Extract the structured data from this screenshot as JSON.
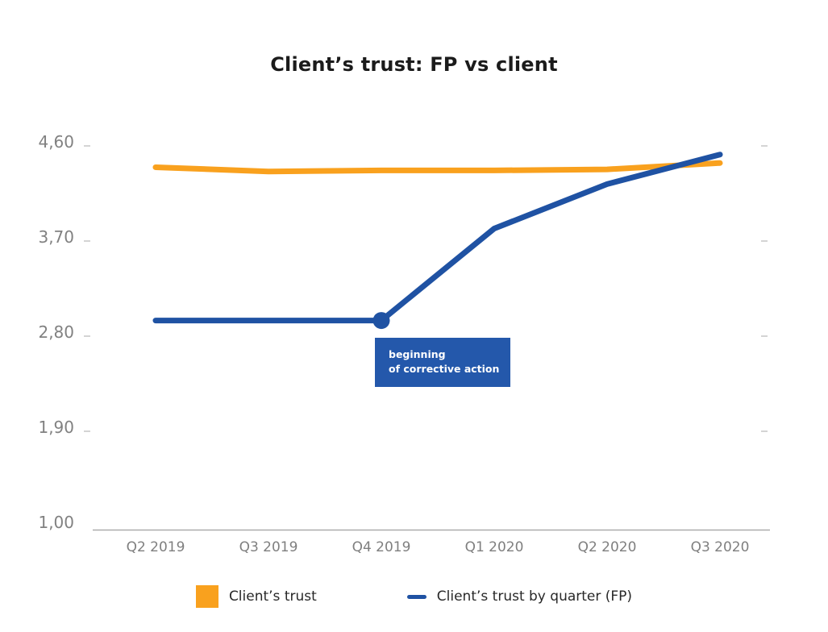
{
  "title": "Client’s trust: FP vs client",
  "chart_data": {
    "type": "line",
    "title": "Client’s trust: FP vs client",
    "categories": [
      "Q2 2019",
      "Q3 2019",
      "Q4 2019",
      "Q1 2020",
      "Q2 2020",
      "Q3 2020"
    ],
    "series": [
      {
        "name": "Client’s trust",
        "color": "#F9A11E",
        "values": [
          4.36,
          4.32,
          4.33,
          4.33,
          4.34,
          4.4
        ]
      },
      {
        "name": "Client’s trust by quarter (FP)",
        "color": "#1F52A3",
        "values": [
          2.91,
          2.91,
          2.91,
          3.78,
          4.2,
          4.48
        ],
        "marker_at_index": 2
      }
    ],
    "y_ticks": [
      {
        "label": "4,60",
        "value": 4.6
      },
      {
        "label": "3,70",
        "value": 3.7
      },
      {
        "label": "2,80",
        "value": 2.8
      },
      {
        "label": "1,90",
        "value": 1.9
      },
      {
        "label": "1,00",
        "value": 1.0
      }
    ],
    "ylim": [
      1.0,
      4.6
    ],
    "xlabel": "",
    "ylabel": "",
    "grid": "off",
    "legend_position": "bottom",
    "annotation": {
      "line1": "beginning",
      "line2": "of corrective action",
      "color": "#2458AB",
      "text_color": "#FFFFFF",
      "anchor_category": "Q4 2019"
    }
  },
  "axis_style": {
    "text_color": "#7F7F7F",
    "baseline_color": "#ABABAB",
    "tick_color": "#D4D4D4"
  },
  "legend": {
    "items": [
      {
        "label": "Client’s trust",
        "swatch": "square",
        "color": "#F9A11E"
      },
      {
        "label": "Client’s trust by quarter (FP)",
        "swatch": "line",
        "color": "#1F52A3"
      }
    ]
  }
}
